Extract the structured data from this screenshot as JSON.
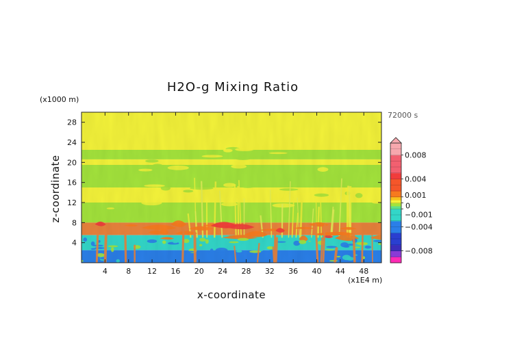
{
  "chart_data": {
    "type": "heatmap",
    "title": "H2O-g Mixing Ratio",
    "xlabel": "x-coordinate",
    "ylabel": "z-coordinate",
    "x_unit_label": "(x1E4 m)",
    "y_unit_label": "(x1000 m)",
    "time_label": "72000 s",
    "xlim": [
      0,
      51
    ],
    "ylim": [
      0,
      30
    ],
    "x_ticks": [
      4,
      8,
      12,
      16,
      20,
      24,
      28,
      32,
      36,
      40,
      44,
      48
    ],
    "y_ticks": [
      4,
      8,
      12,
      16,
      20,
      24,
      28
    ],
    "colorbar": {
      "range": [
        -0.01,
        0.01
      ],
      "tick_values": [
        0.008,
        0.004,
        0.001,
        0,
        -0.001,
        -0.004,
        -0.008
      ],
      "tick_labels": [
        "0.008",
        "0.004",
        "0.001",
        "0",
        "−0.001",
        "−0.004",
        "−0.008"
      ],
      "extend_top": true,
      "colors": {
        "strong_positive": "#f7a8ae",
        "positive": "#f03c3c",
        "moderate_positive": "#f77a1e",
        "weak_positive": "#e8823c",
        "near_zero_positive": "#f3f23a",
        "near_zero_negative": "#a3e33c",
        "weak_negative": "#33d6c8",
        "negative": "#2b7fe8",
        "strong_negative": "#3b2dbb",
        "extreme_negative": "#ff2ab6"
      }
    },
    "field_regions": [
      {
        "z_range": [
          22.5,
          30
        ],
        "value": 0.0004
      },
      {
        "z_range": [
          20.6,
          22.5
        ],
        "value": -0.0004
      },
      {
        "z_range": [
          19.5,
          20.6
        ],
        "value": 0.0004
      },
      {
        "z_range": [
          15,
          19.5
        ],
        "value": -0.0004
      },
      {
        "z_range": [
          12,
          15
        ],
        "value": 0.0004
      },
      {
        "z_range": [
          8,
          12
        ],
        "value": -0.0004
      },
      {
        "z_range": [
          5.5,
          8
        ],
        "value": 0.0015
      },
      {
        "z_range": [
          2.5,
          5.5
        ],
        "value": -0.002
      },
      {
        "z_range": [
          0,
          2.5
        ],
        "value": -0.004
      }
    ]
  }
}
